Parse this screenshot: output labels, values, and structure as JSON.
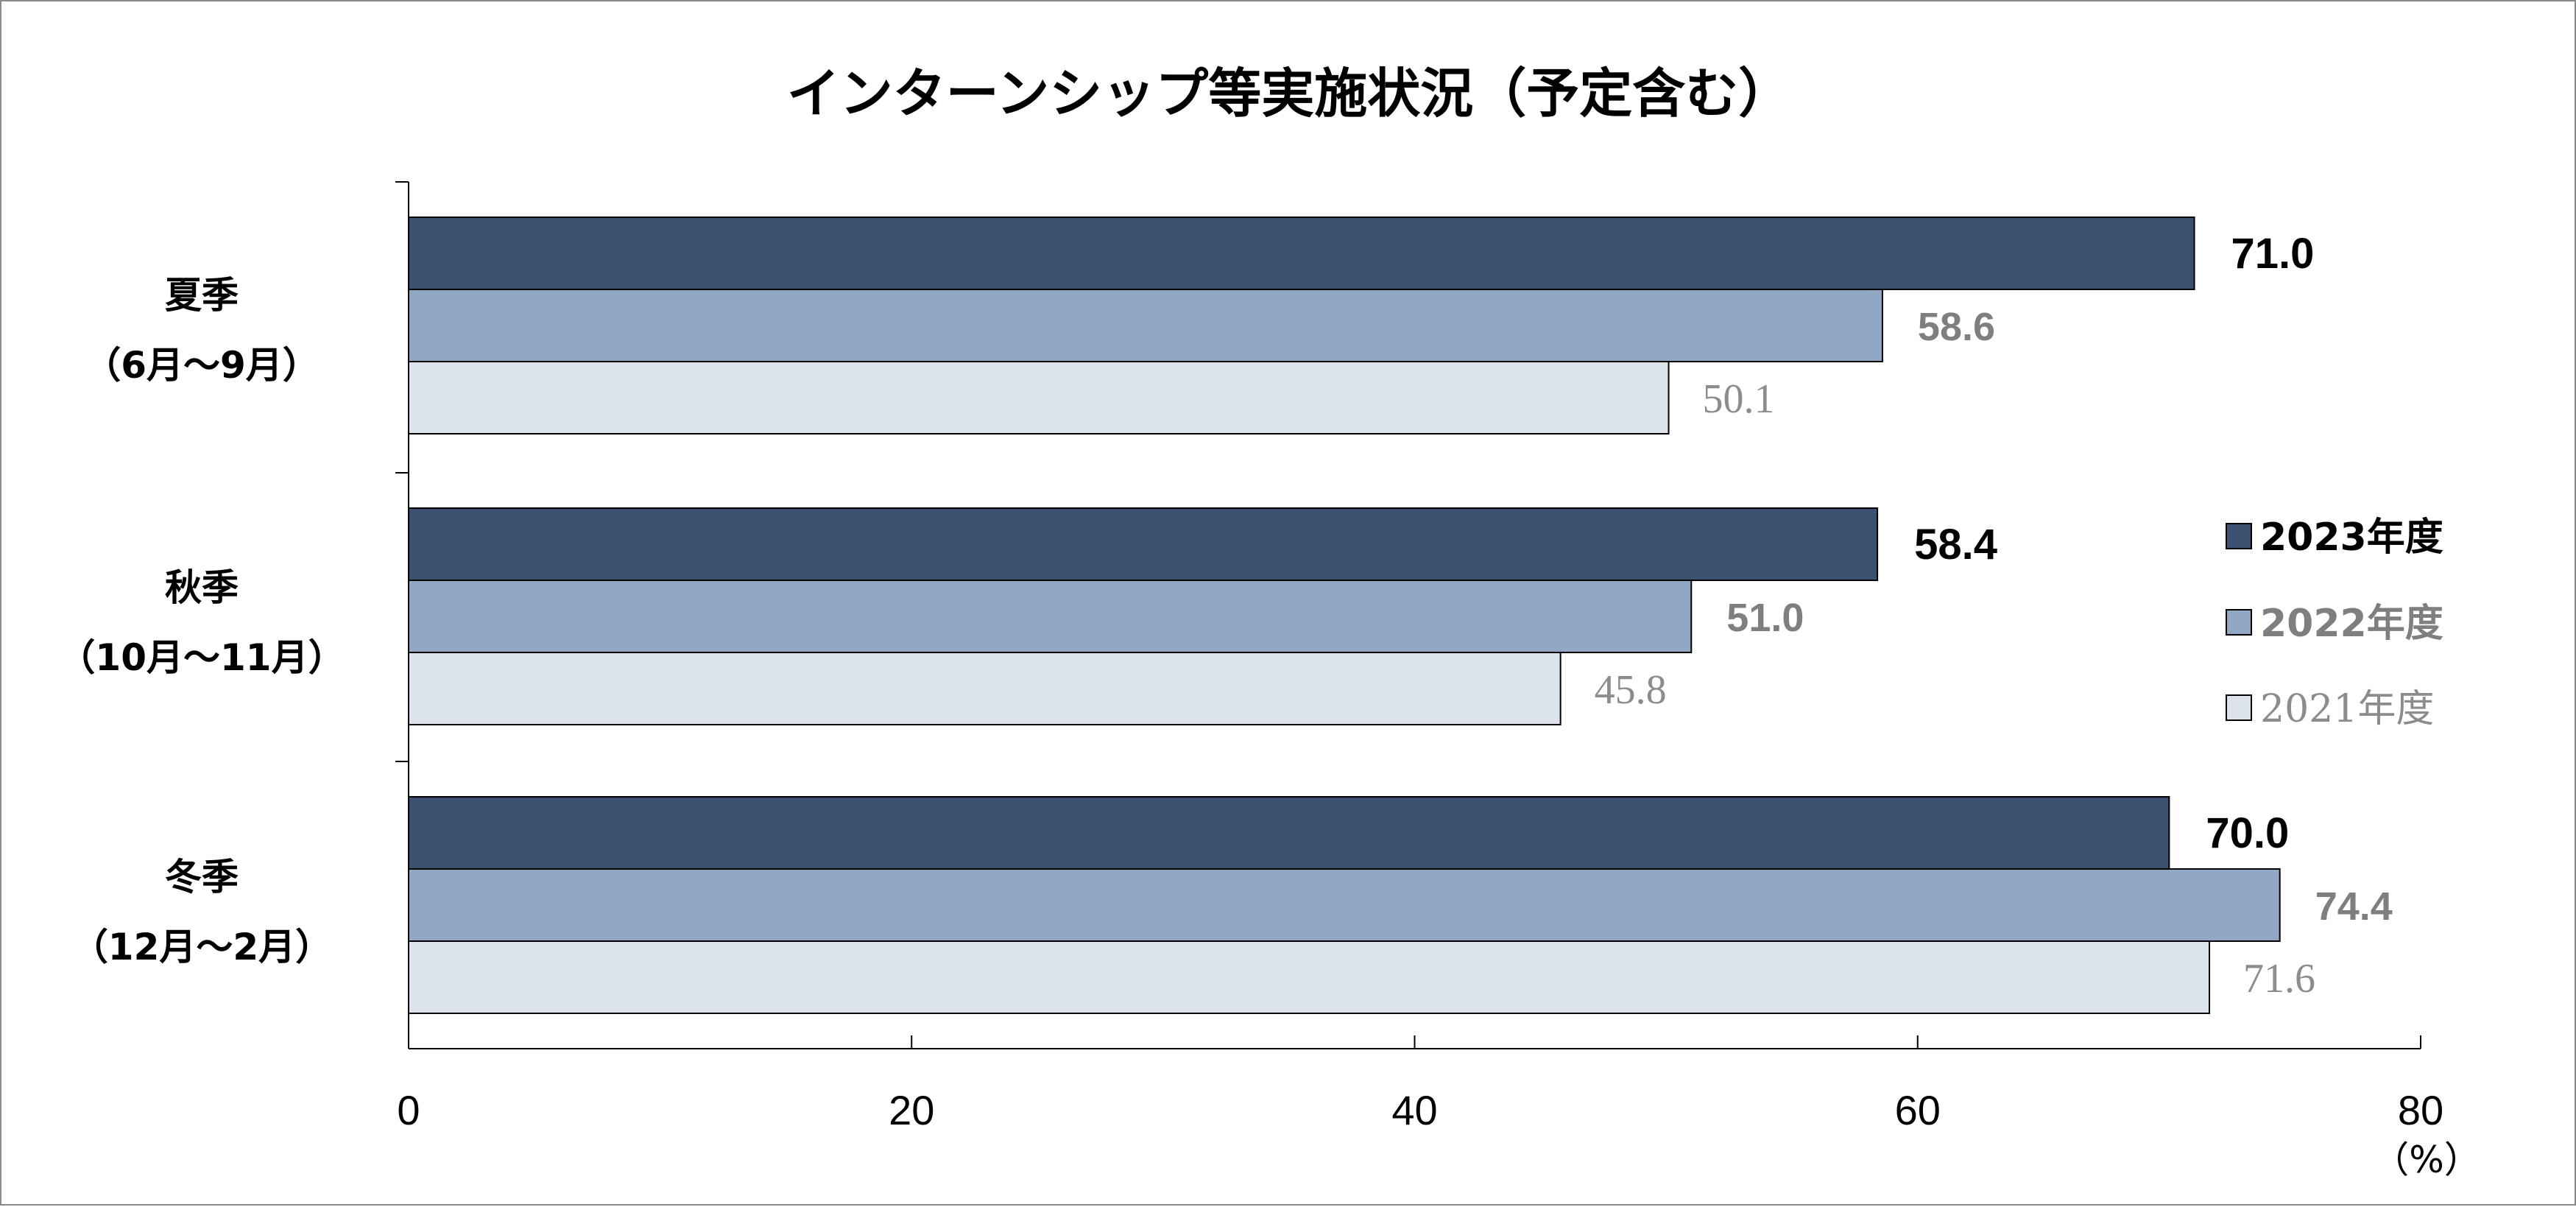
{
  "chart_data": {
    "type": "bar",
    "orientation": "horizontal",
    "title": "インターンシップ等実施状況（予定含む）",
    "categories": [
      [
        "夏季",
        "（6月～9月）"
      ],
      [
        "秋季",
        "（10月～11月）"
      ],
      [
        "冬季",
        "（12月～2月）"
      ]
    ],
    "series": [
      {
        "name": "2023年度",
        "values": [
          71.0,
          58.4,
          70.0
        ],
        "color": "#3d5170",
        "label_color": "#000000"
      },
      {
        "name": "2022年度",
        "values": [
          58.6,
          51.0,
          74.4
        ],
        "color": "#91a7c4",
        "label_color": "#7f7f7f"
      },
      {
        "name": "2021年度",
        "values": [
          50.1,
          45.8,
          71.6
        ],
        "color": "#dde3ec",
        "label_color": "#8c8c8c"
      }
    ],
    "xlim": [
      0,
      80
    ],
    "xticks": [
      "0",
      "20",
      "40",
      "60",
      "80"
    ],
    "unit_label": "（%）",
    "grid": false,
    "legend_position": "right"
  }
}
